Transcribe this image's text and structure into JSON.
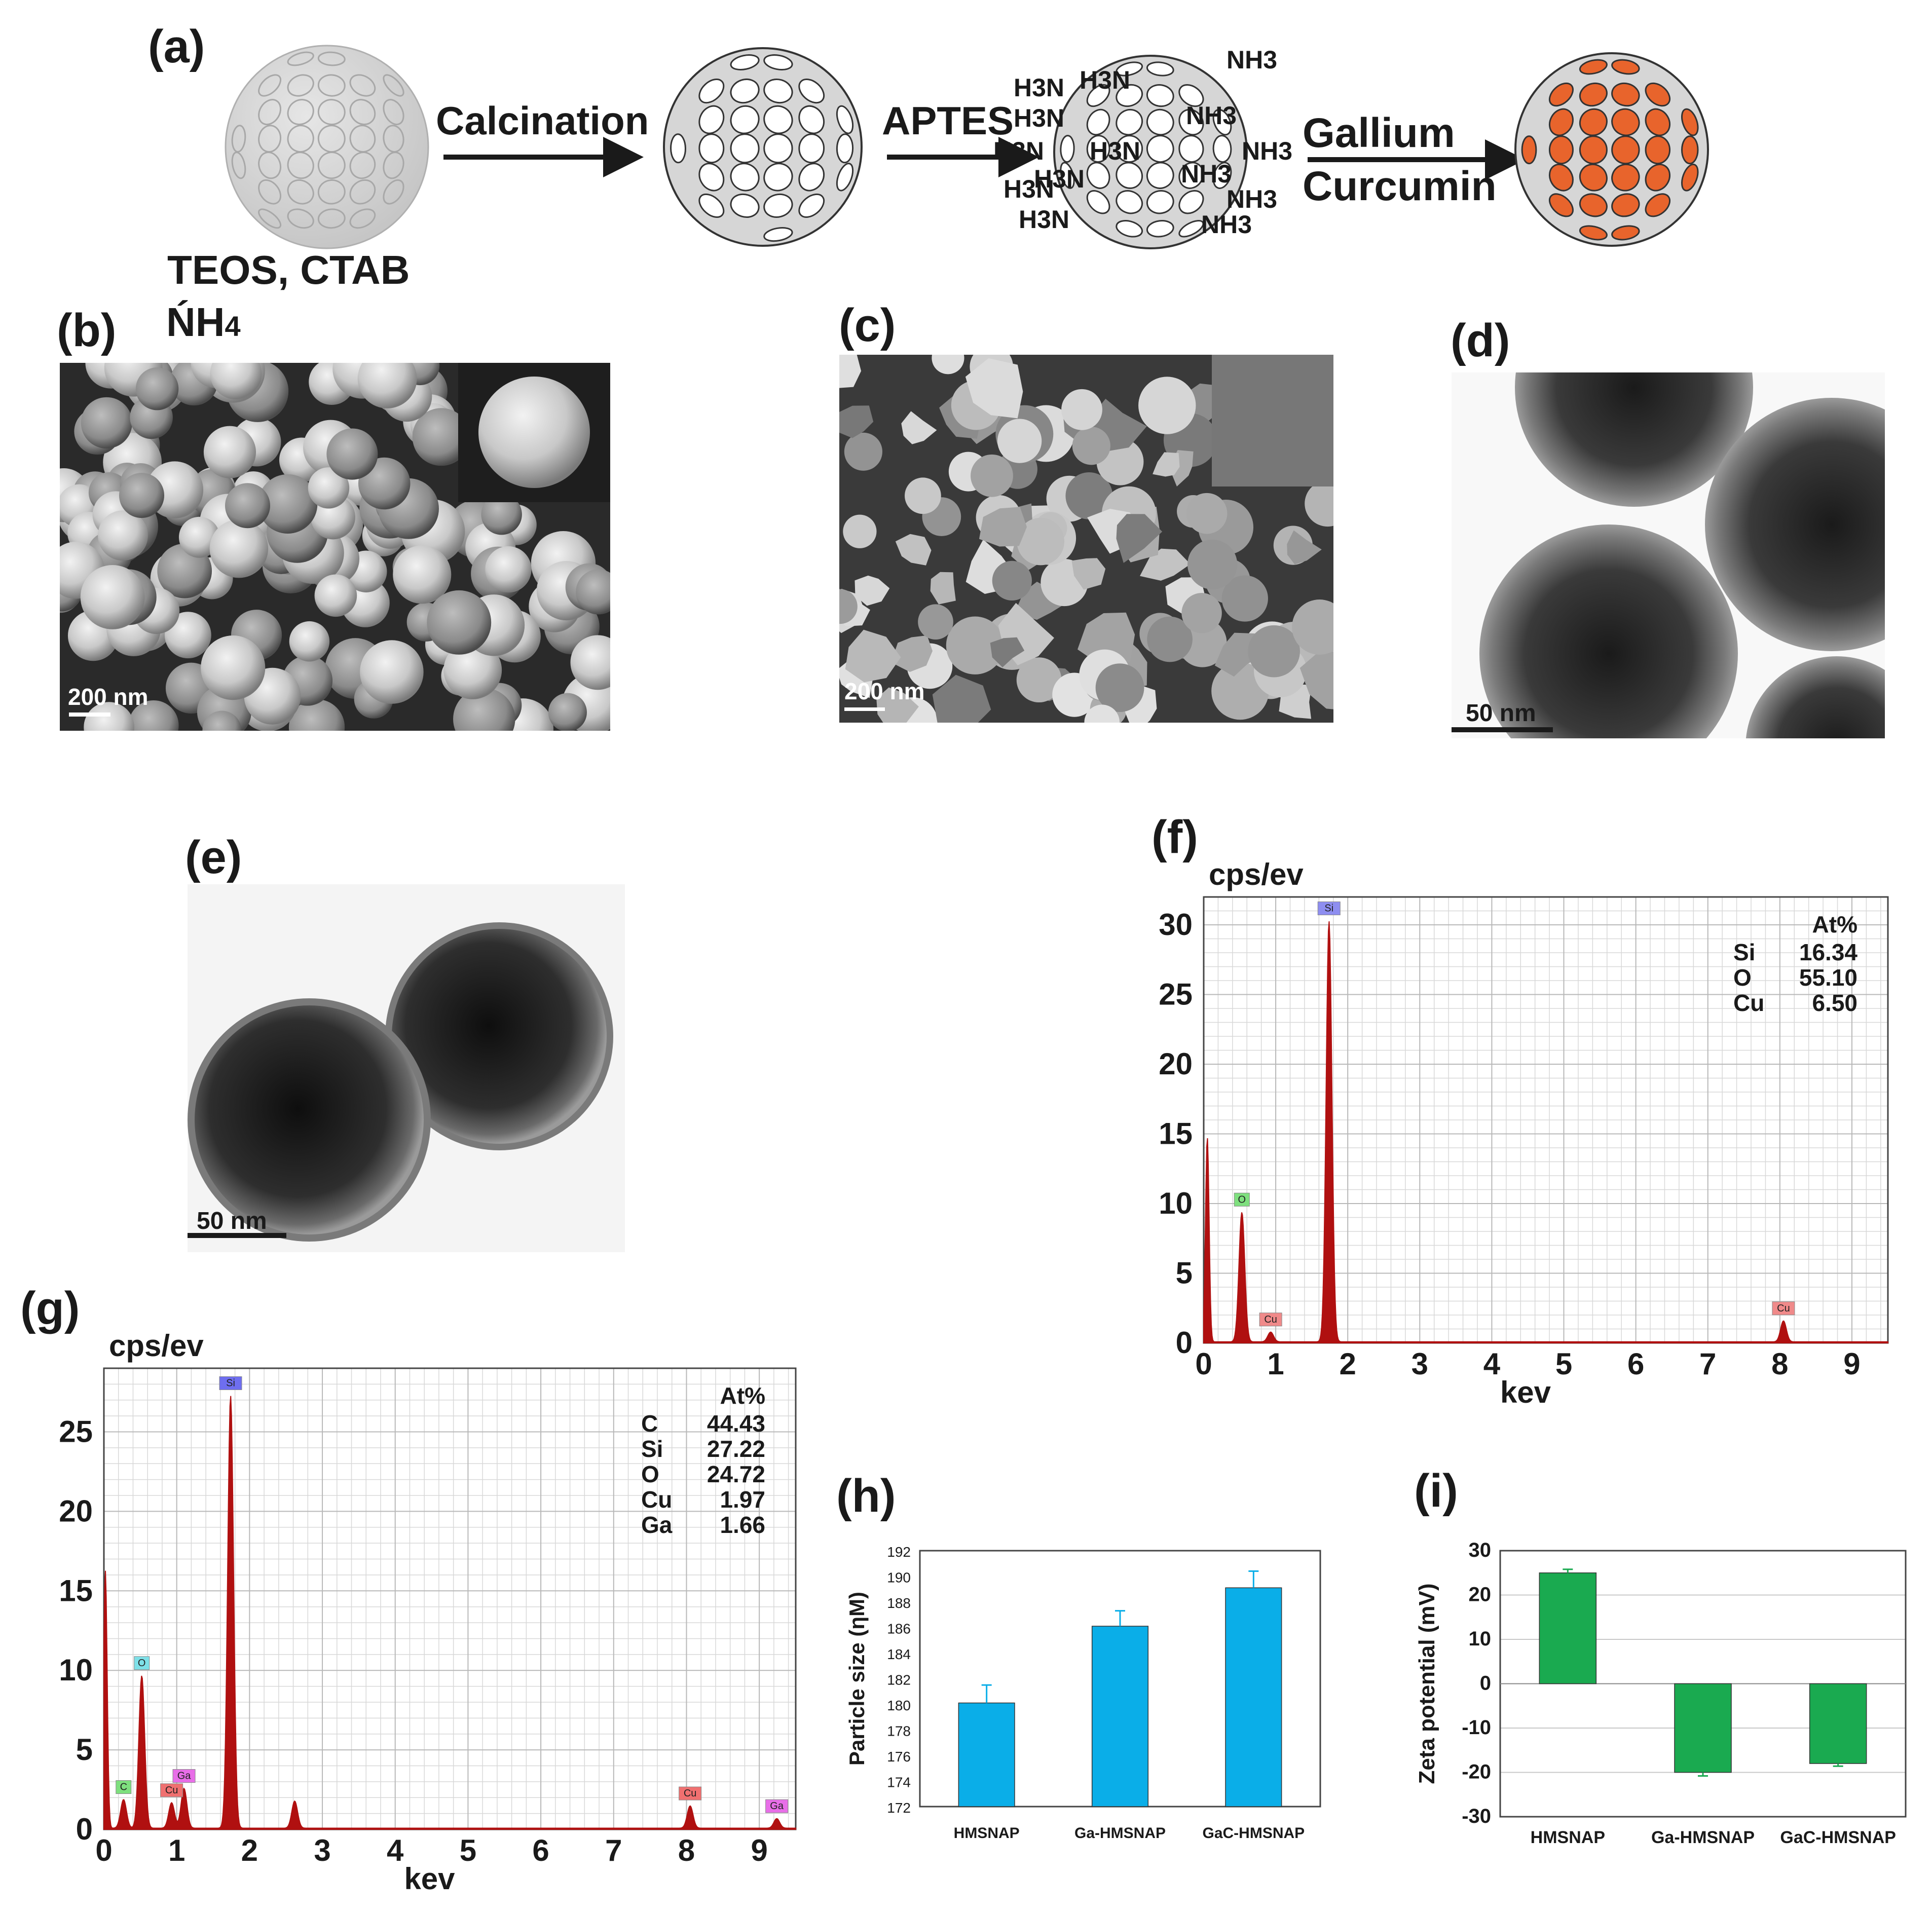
{
  "panels": {
    "a": "(a)",
    "b": "(b)",
    "c": "(c)",
    "d": "(d)",
    "e": "(e)",
    "f": "(f)",
    "g": "(g)",
    "h": "(h)",
    "i": "(i)"
  },
  "schematic": {
    "calcination": "Calcination",
    "aptes": "APTES",
    "gallium": "Gallium",
    "curcumin": "Curcumin",
    "reagents": "TEOS, CTAB",
    "nh4": "NH4",
    "nh3": "NH3",
    "h3n": "H3N",
    "colors": {
      "sphere_gray": "#d9d9d9",
      "pore_orange": "#e8642c"
    }
  },
  "micrographs": {
    "b_scale": "200 nm",
    "c_scale": "200 nm",
    "d_scale": "50 nm",
    "e_scale": "50 nm"
  },
  "chart_data": [
    {
      "panel": "f",
      "type": "line",
      "ylabel": "cps/ev",
      "xlabel": "kev",
      "xlim": [
        0,
        9.5
      ],
      "ylim": [
        0,
        32
      ],
      "xticks": [
        0,
        1,
        2,
        3,
        4,
        5,
        6,
        7,
        8,
        9
      ],
      "yticks": [
        0,
        5,
        10,
        15,
        20,
        25,
        30
      ],
      "grid": true,
      "color": "#b01010",
      "peaks": [
        {
          "x": 0.05,
          "y": 14.7
        },
        {
          "x": 0.53,
          "y": 9.3,
          "label": "O",
          "label_color": "#7ee07e"
        },
        {
          "x": 0.93,
          "y": 0.7,
          "label": "Cu",
          "label_color": "#f08a8a"
        },
        {
          "x": 1.74,
          "y": 30.2,
          "label": "Si",
          "label_color": "#8e8ef0"
        },
        {
          "x": 8.05,
          "y": 1.5,
          "label": "Cu",
          "label_color": "#f08a8a"
        }
      ],
      "composition_header": "At%",
      "composition": [
        {
          "element": "Si",
          "value": "16.34"
        },
        {
          "element": "O",
          "value": "55.10"
        },
        {
          "element": "Cu",
          "value": "6.50"
        }
      ]
    },
    {
      "panel": "g",
      "type": "line",
      "ylabel": "cps/ev",
      "xlabel": "kev",
      "xlim": [
        0,
        9.5
      ],
      "ylim": [
        0,
        29
      ],
      "xticks": [
        0,
        1,
        2,
        3,
        4,
        5,
        6,
        7,
        8,
        9
      ],
      "yticks": [
        0,
        5,
        10,
        15,
        20,
        25
      ],
      "grid": true,
      "color": "#b01010",
      "peaks": [
        {
          "x": 0.02,
          "y": 16.2
        },
        {
          "x": 0.27,
          "y": 1.8,
          "label": "C",
          "label_color": "#7ee07e"
        },
        {
          "x": 0.52,
          "y": 9.6,
          "label": "O",
          "label_color": "#7ee0e8"
        },
        {
          "x": 0.93,
          "y": 1.6,
          "label": "Cu",
          "label_color": "#f07070"
        },
        {
          "x": 1.1,
          "y": 2.5,
          "label": "Ga",
          "label_color": "#e86ee8"
        },
        {
          "x": 1.74,
          "y": 27.2,
          "label": "Si",
          "label_color": "#6e6ef0"
        },
        {
          "x": 2.62,
          "y": 1.7
        },
        {
          "x": 8.05,
          "y": 1.4,
          "label": "Cu",
          "label_color": "#f07070"
        },
        {
          "x": 9.24,
          "y": 0.6,
          "label": "Ga",
          "label_color": "#e86ee8"
        }
      ],
      "composition_header": "At%",
      "composition": [
        {
          "element": "C",
          "value": "44.43"
        },
        {
          "element": "Si",
          "value": "27.22"
        },
        {
          "element": "O",
          "value": "24.72"
        },
        {
          "element": "Cu",
          "value": "1.97"
        },
        {
          "element": "Ga",
          "value": "1.66"
        }
      ]
    },
    {
      "panel": "h",
      "type": "bar",
      "ylabel": "Particle size (ηM)",
      "categories": [
        "HMSNAP",
        "Ga-HMSNAP",
        "GaC-HMSNAP"
      ],
      "values": [
        180.1,
        186.1,
        189.1
      ],
      "errors": [
        1.4,
        1.2,
        1.3
      ],
      "ylim": [
        172,
        192
      ],
      "yticks": [
        172,
        174,
        176,
        178,
        180,
        182,
        184,
        186,
        188,
        190,
        192
      ],
      "color": "#0aaee8"
    },
    {
      "panel": "i",
      "type": "bar",
      "ylabel": "Zeta potential (mV)",
      "categories": [
        "HMSNAP",
        "Ga-HMSNAP",
        "GaC-HMSNAP"
      ],
      "values": [
        25.0,
        -20.0,
        -18.0
      ],
      "errors": [
        0.8,
        0.8,
        0.6
      ],
      "ylim": [
        -30,
        30
      ],
      "yticks": [
        -30,
        -20,
        -10,
        0,
        10,
        20,
        30
      ],
      "color": "#1aaa50"
    }
  ]
}
